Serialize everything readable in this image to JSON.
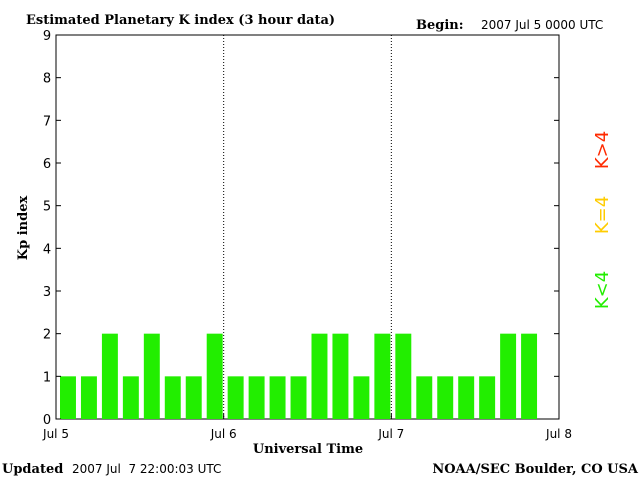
{
  "header": {
    "title": "Estimated Planetary K index (3 hour data)",
    "begin_label": "Begin:",
    "begin_value": "2007 Jul 5 0000 UTC"
  },
  "footer": {
    "updated_label": "Updated",
    "updated_value": "2007 Jul  7 22:00:03 UTC",
    "source": "NOAA/SEC Boulder, CO USA"
  },
  "legend": {
    "high": {
      "label": "K>4",
      "color": "#ff2a00"
    },
    "mid": {
      "label": "K=4",
      "color": "#ffcc00"
    },
    "low": {
      "label": "K<4",
      "color": "#22ee00"
    }
  },
  "chart_data": {
    "type": "bar",
    "title": "Estimated Planetary K index (3 hour data)",
    "xlabel": "Universal Time",
    "ylabel": "Kp index",
    "ylim": [
      0,
      9
    ],
    "yticks": [
      0,
      1,
      2,
      3,
      4,
      5,
      6,
      7,
      8,
      9
    ],
    "x_day_labels": [
      "Jul 5",
      "Jul 6",
      "Jul 7",
      "Jul 8"
    ],
    "bar_interval_hours": 3,
    "bar_color": "#22ee00",
    "day_separators": "dotted",
    "values": [
      1,
      1,
      2,
      1,
      2,
      1,
      1,
      2,
      1,
      1,
      1,
      1,
      2,
      2,
      1,
      2,
      2,
      1,
      1,
      1,
      1,
      2,
      2
    ]
  }
}
